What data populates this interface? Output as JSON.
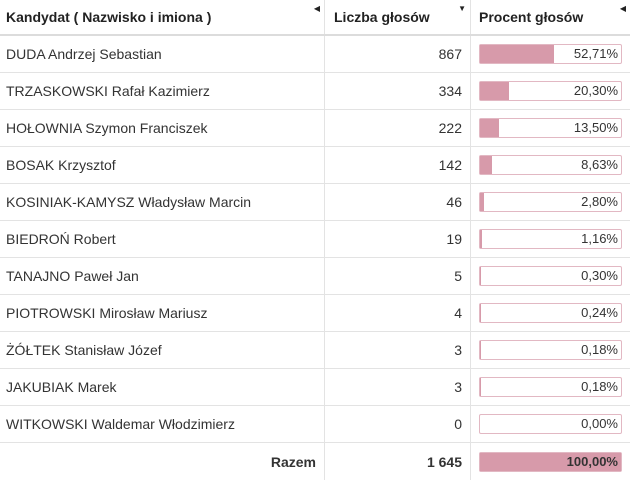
{
  "headers": {
    "name": "Kandydat ( Nazwisko i imiona )",
    "votes": "Liczba głosów",
    "percent": "Procent głosów",
    "sort_icon": "sort-arrow-icon"
  },
  "rows": [
    {
      "name": "DUDA Andrzej Sebastian",
      "votes": "867",
      "percent": "52,71%",
      "share": 0.5271
    },
    {
      "name": "TRZASKOWSKI Rafał Kazimierz",
      "votes": "334",
      "percent": "20,30%",
      "share": 0.203
    },
    {
      "name": "HOŁOWNIA Szymon Franciszek",
      "votes": "222",
      "percent": "13,50%",
      "share": 0.135
    },
    {
      "name": "BOSAK Krzysztof",
      "votes": "142",
      "percent": "8,63%",
      "share": 0.0863
    },
    {
      "name": "KOSINIAK-KAMYSZ Władysław Marcin",
      "votes": "46",
      "percent": "2,80%",
      "share": 0.028
    },
    {
      "name": "BIEDROŃ Robert",
      "votes": "19",
      "percent": "1,16%",
      "share": 0.0116
    },
    {
      "name": "TANAJNO Paweł Jan",
      "votes": "5",
      "percent": "0,30%",
      "share": 0.003
    },
    {
      "name": "PIOTROWSKI Mirosław Mariusz",
      "votes": "4",
      "percent": "0,24%",
      "share": 0.0024
    },
    {
      "name": "ŻÓŁTEK Stanisław Józef",
      "votes": "3",
      "percent": "0,18%",
      "share": 0.0018
    },
    {
      "name": "JAKUBIAK Marek",
      "votes": "3",
      "percent": "0,18%",
      "share": 0.0018
    },
    {
      "name": "WITKOWSKI Waldemar Włodzimierz",
      "votes": "0",
      "percent": "0,00%",
      "share": 0.0
    }
  ],
  "total": {
    "label": "Razem",
    "votes": "1 645",
    "percent": "100,00%",
    "share": 1.0
  },
  "colors": {
    "bar_fill": "#d79aaa",
    "bar_border": "#e2b8c3"
  }
}
